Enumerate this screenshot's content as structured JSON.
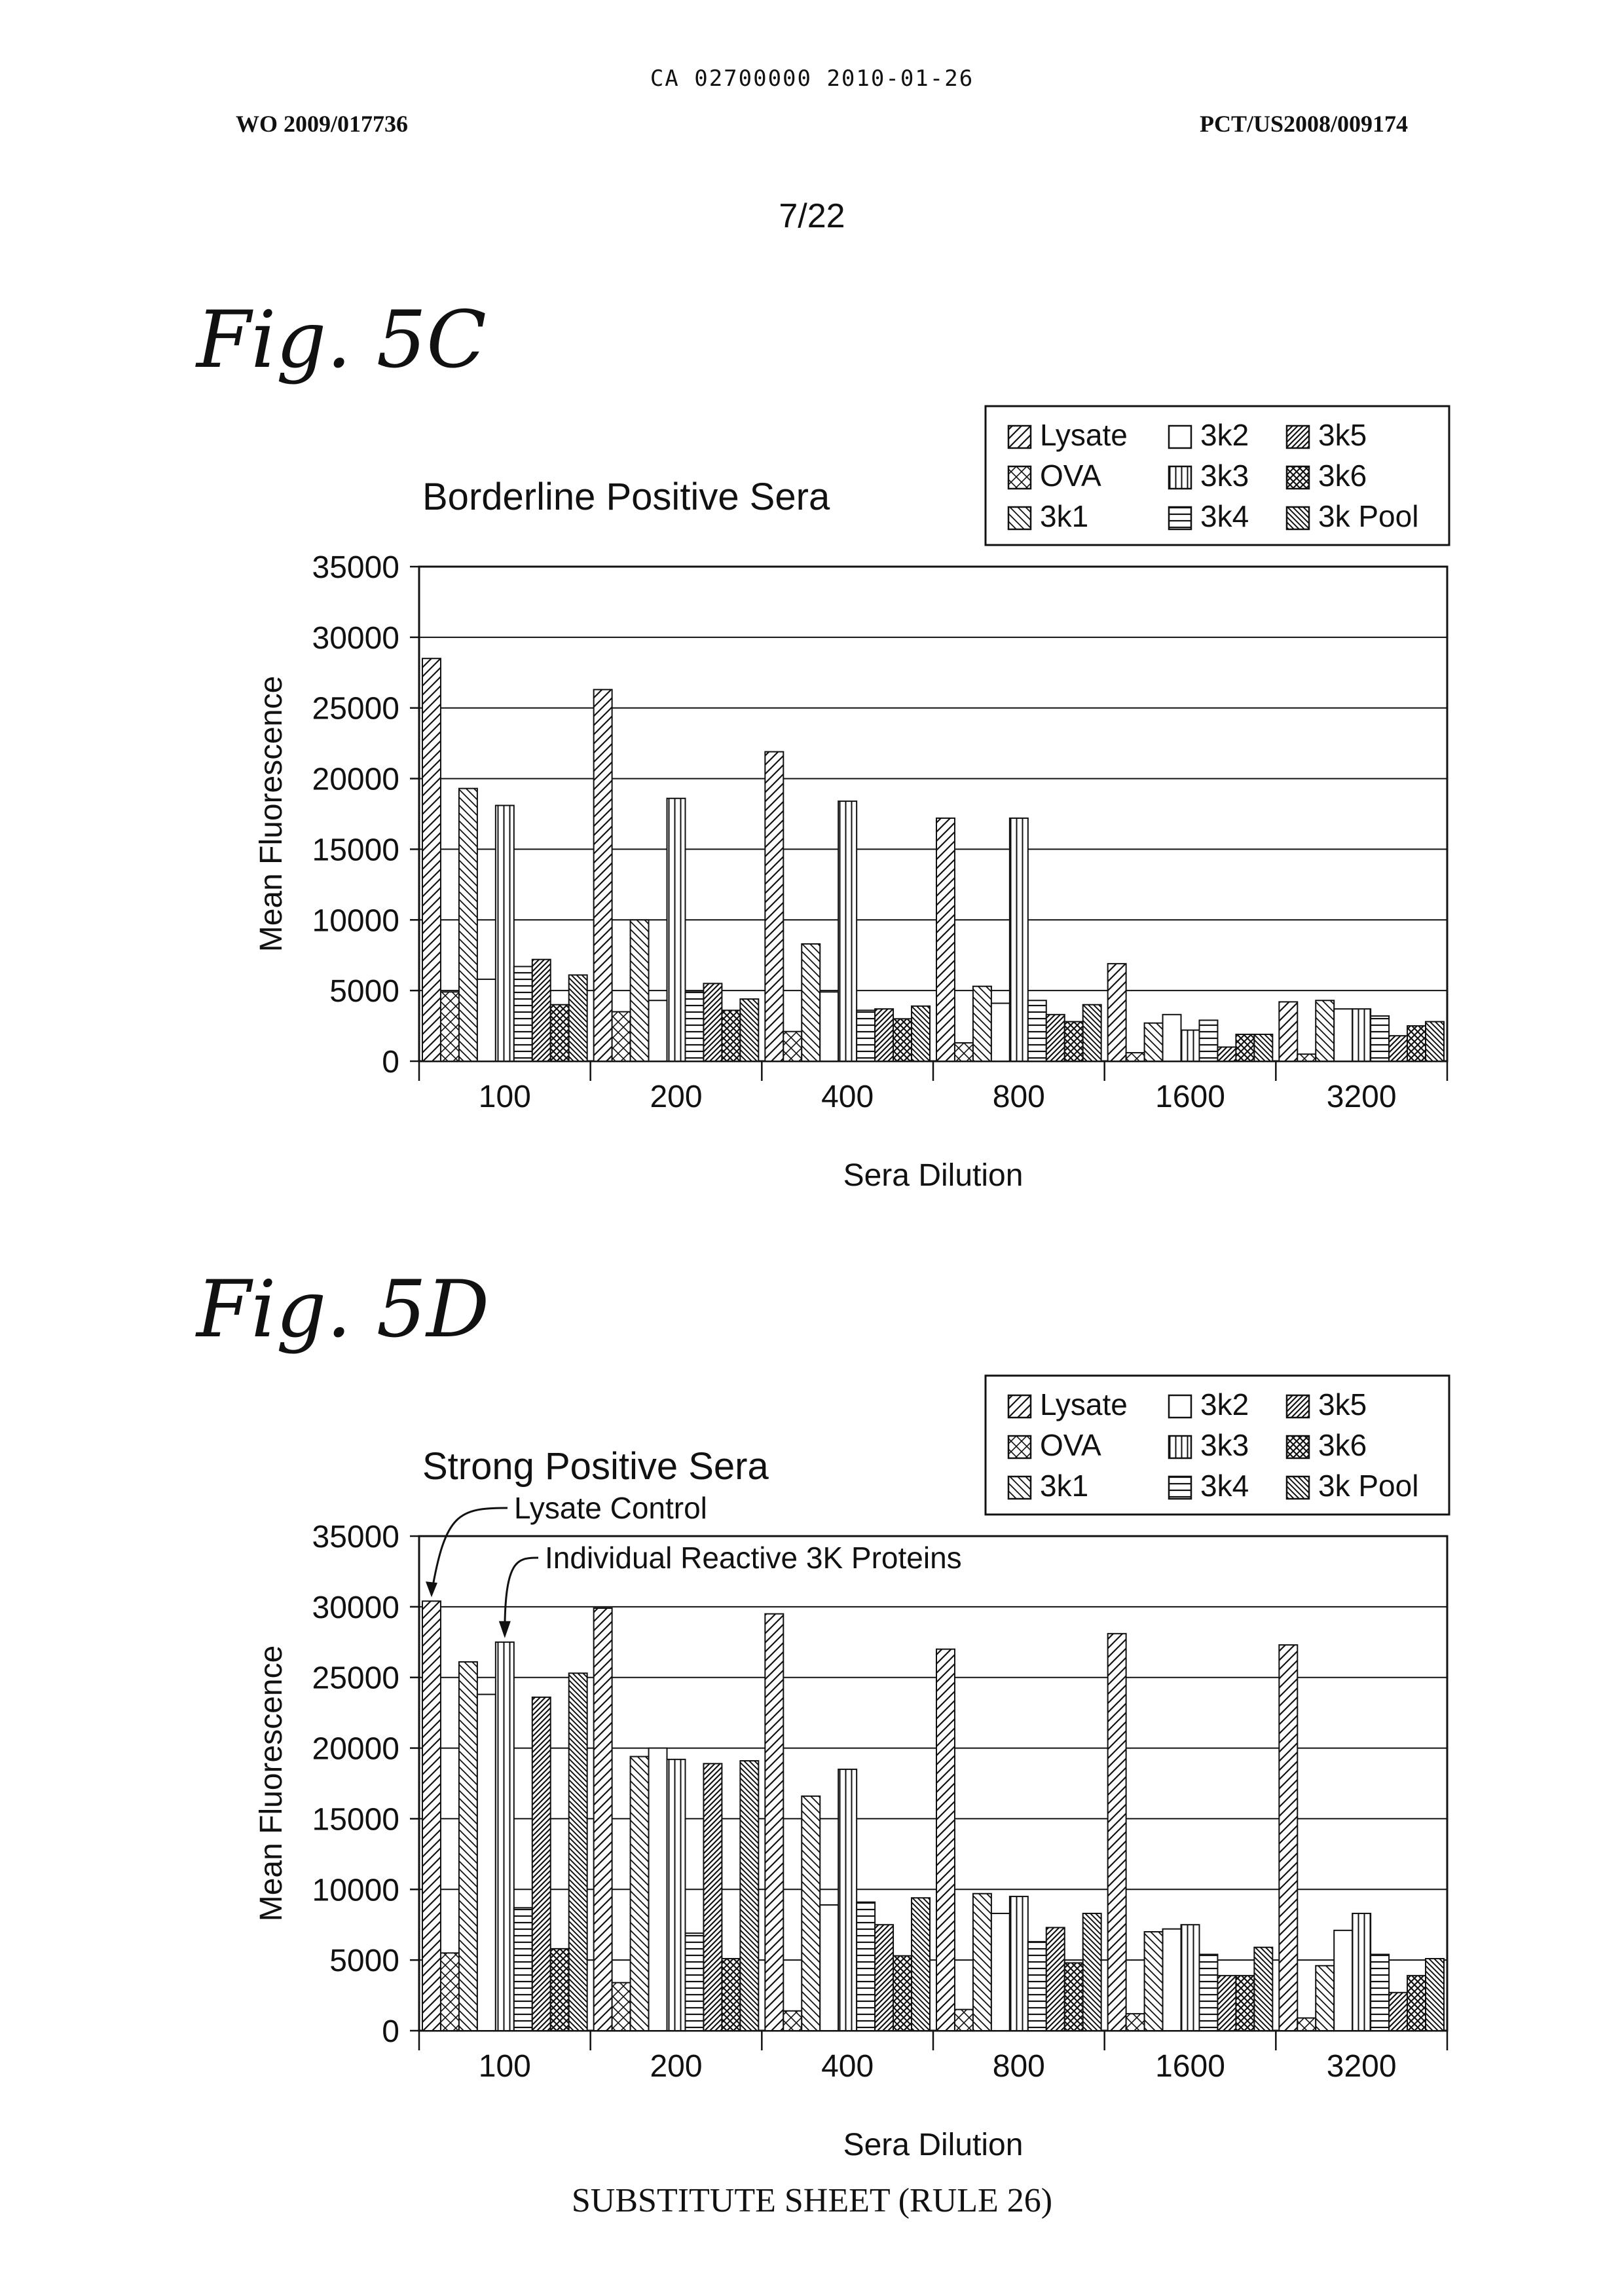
{
  "header": {
    "ca_line": "CA 02700000 2010-01-26",
    "wo_number": "WO 2009/017736",
    "pct_number": "PCT/US2008/009174",
    "page": "7/22"
  },
  "footer": "SUBSTITUTE SHEET (RULE 26)",
  "series_names": [
    "Lysate",
    "OVA",
    "3k1",
    "3k2",
    "3k3",
    "3k4",
    "3k5",
    "3k6",
    "3k Pool"
  ],
  "chart_data": [
    {
      "figure_label": "Fig. 5C",
      "type": "bar",
      "title": "Borderline Positive Sera",
      "xlabel": "Sera Dilution",
      "ylabel": "Mean Fluorescence",
      "ylim": [
        0,
        35000
      ],
      "yticks": [
        0,
        5000,
        10000,
        15000,
        20000,
        25000,
        30000,
        35000
      ],
      "grid": true,
      "legend": "top-right",
      "categories": [
        "100",
        "200",
        "400",
        "800",
        "1600",
        "3200"
      ],
      "series": [
        {
          "name": "Lysate",
          "values": [
            28500,
            26300,
            21900,
            17200,
            6900,
            4200
          ]
        },
        {
          "name": "OVA",
          "values": [
            4900,
            3500,
            2100,
            1300,
            600,
            500
          ]
        },
        {
          "name": "3k1",
          "values": [
            19300,
            10000,
            8300,
            5300,
            2700,
            4300
          ]
        },
        {
          "name": "3k2",
          "values": [
            5800,
            4300,
            4900,
            4100,
            3300,
            3700
          ]
        },
        {
          "name": "3k3",
          "values": [
            18100,
            18600,
            18400,
            17200,
            2200,
            3700
          ]
        },
        {
          "name": "3k4",
          "values": [
            6700,
            4900,
            3600,
            4300,
            2900,
            3200
          ]
        },
        {
          "name": "3k5",
          "values": [
            7200,
            5500,
            3700,
            3300,
            1000,
            1800
          ]
        },
        {
          "name": "3k6",
          "values": [
            4000,
            3600,
            3000,
            2800,
            1900,
            2500
          ]
        },
        {
          "name": "3k Pool",
          "values": [
            6100,
            4400,
            3900,
            4000,
            1900,
            2800
          ]
        }
      ]
    },
    {
      "figure_label": "Fig. 5D",
      "type": "bar",
      "title": "Strong Positive Sera",
      "xlabel": "Sera Dilution",
      "ylabel": "Mean Fluorescence",
      "ylim": [
        0,
        35000
      ],
      "yticks": [
        0,
        5000,
        10000,
        15000,
        20000,
        25000,
        30000,
        35000
      ],
      "grid": true,
      "legend": "top-right",
      "annotations": [
        "Lysate Control",
        "Individual Reactive 3K Proteins"
      ],
      "categories": [
        "100",
        "200",
        "400",
        "800",
        "1600",
        "3200"
      ],
      "series": [
        {
          "name": "Lysate",
          "values": [
            30400,
            29900,
            29500,
            27000,
            28100,
            27300
          ]
        },
        {
          "name": "OVA",
          "values": [
            5500,
            3400,
            1400,
            1500,
            1200,
            900
          ]
        },
        {
          "name": "3k1",
          "values": [
            26100,
            19400,
            16600,
            9700,
            7000,
            4600
          ]
        },
        {
          "name": "3k2",
          "values": [
            23800,
            20000,
            8900,
            8300,
            7200,
            7100
          ]
        },
        {
          "name": "3k3",
          "values": [
            27500,
            19200,
            18500,
            9500,
            7500,
            8300
          ]
        },
        {
          "name": "3k4",
          "values": [
            8700,
            6900,
            9100,
            6300,
            5400,
            5400
          ]
        },
        {
          "name": "3k5",
          "values": [
            23600,
            18900,
            7500,
            7300,
            3900,
            2700
          ]
        },
        {
          "name": "3k6",
          "values": [
            5800,
            5100,
            5300,
            4800,
            3900,
            3900
          ]
        },
        {
          "name": "3k Pool",
          "values": [
            25300,
            19100,
            9400,
            8300,
            5900,
            5100
          ]
        }
      ]
    }
  ]
}
